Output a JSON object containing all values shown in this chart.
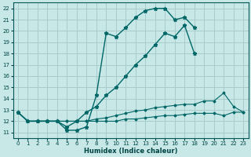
{
  "xlabel": "Humidex (Indice chaleur)",
  "bg_color": "#c8e8e8",
  "grid_color": "#a8cccc",
  "line_color": "#006666",
  "xlim": [
    -0.5,
    23.5
  ],
  "ylim": [
    10.5,
    22.5
  ],
  "xticks": [
    0,
    1,
    2,
    3,
    4,
    5,
    6,
    7,
    8,
    9,
    10,
    11,
    12,
    13,
    14,
    15,
    16,
    17,
    18,
    19,
    20,
    21,
    22,
    23
  ],
  "yticks": [
    11,
    12,
    13,
    14,
    15,
    16,
    17,
    18,
    19,
    20,
    21,
    22
  ],
  "series": [
    {
      "x": [
        0,
        1,
        2,
        3,
        4,
        5,
        6,
        7,
        8,
        9,
        10,
        11,
        12,
        13,
        14,
        15,
        16,
        17,
        18
      ],
      "y": [
        12.8,
        12.0,
        12.0,
        12.0,
        12.0,
        11.2,
        11.2,
        11.5,
        14.3,
        19.8,
        19.5,
        20.3,
        21.2,
        21.8,
        22.0,
        22.0,
        21.0,
        21.2,
        20.3
      ],
      "marker": "*",
      "markersize": 3.5,
      "lw": 1.0
    },
    {
      "x": [
        0,
        1,
        2,
        3,
        4,
        5,
        6,
        7,
        8,
        9,
        10,
        11,
        12,
        13,
        14,
        15,
        16,
        17,
        18
      ],
      "y": [
        12.8,
        12.0,
        12.0,
        12.0,
        12.0,
        11.5,
        12.0,
        12.8,
        13.3,
        14.3,
        15.0,
        16.0,
        17.0,
        17.8,
        18.8,
        19.8,
        19.5,
        20.5,
        18.0
      ],
      "marker": "*",
      "markersize": 3.5,
      "lw": 1.0
    },
    {
      "x": [
        0,
        1,
        2,
        3,
        4,
        5,
        6,
        7,
        8,
        9,
        10,
        11,
        12,
        13,
        14,
        15,
        16,
        17,
        18,
        19,
        20,
        21,
        22,
        23
      ],
      "y": [
        12.8,
        12.0,
        12.0,
        12.0,
        12.0,
        12.0,
        12.0,
        12.0,
        12.2,
        12.3,
        12.5,
        12.7,
        12.9,
        13.0,
        13.2,
        13.3,
        13.4,
        13.5,
        13.5,
        13.8,
        13.8,
        14.5,
        13.3,
        12.8
      ],
      "marker": "D",
      "markersize": 1.5,
      "lw": 0.8
    },
    {
      "comment": "flattest line ~12-12.8",
      "x": [
        0,
        1,
        2,
        3,
        4,
        5,
        6,
        7,
        8,
        9,
        10,
        11,
        12,
        13,
        14,
        15,
        16,
        17,
        18,
        19,
        20,
        21,
        22,
        23
      ],
      "y": [
        12.8,
        12.0,
        12.0,
        12.0,
        12.0,
        12.0,
        12.0,
        12.0,
        12.0,
        12.0,
        12.0,
        12.2,
        12.2,
        12.3,
        12.4,
        12.5,
        12.5,
        12.6,
        12.7,
        12.7,
        12.7,
        12.5,
        12.8,
        12.8
      ],
      "marker": "D",
      "markersize": 1.5,
      "lw": 0.8
    }
  ]
}
